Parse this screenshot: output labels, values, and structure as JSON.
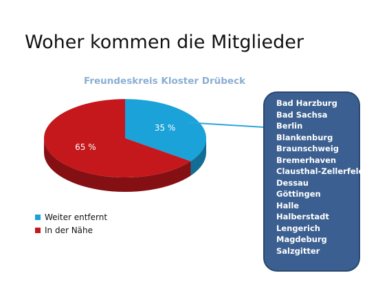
{
  "slide": {
    "title": "Woher kommen die Mitglieder"
  },
  "chart_data": {
    "type": "pie",
    "title": "Freundeskreis Kloster Drübeck",
    "categories": [
      "Weiter entfernt",
      "In der Nähe"
    ],
    "values": [
      35,
      65
    ],
    "labels": [
      "35 %",
      "65 %"
    ],
    "colors": [
      "#1aa2d9",
      "#c4181c"
    ],
    "legend_position": "bottom-left",
    "style": "3d"
  },
  "callout": {
    "cities": [
      "Bad Harzburg",
      "Bad Sachsa",
      "Berlin",
      "Blankenburg",
      "Braunschweig",
      "Bremerhaven",
      "Clausthal-Zellerfeld",
      "Dessau",
      "Göttingen",
      "Halle",
      "Halberstadt",
      "Lengerich",
      "Magdeburg",
      "Salzgitter"
    ],
    "box_color": "#3b5f90",
    "connector_color": "#2aa6df"
  }
}
